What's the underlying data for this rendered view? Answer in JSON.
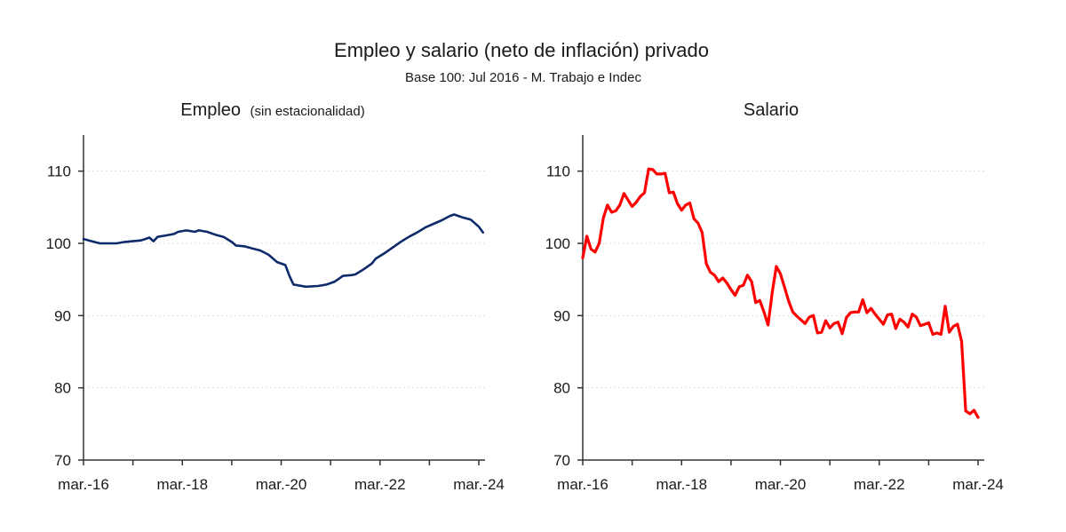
{
  "title": "Empleo y salario (neto de inflación) privado",
  "subtitle": "Base 100: Jul 2016 - M. Trabajo e Indec",
  "colors": {
    "empleo": "#0d2a6b",
    "salario": "#ff0000",
    "axis": "#333333",
    "grid": "#dddddd"
  },
  "chart_data": [
    {
      "type": "line",
      "title": "Empleo",
      "title_note": "(sin estacionalidad)",
      "ylim": [
        70,
        115
      ],
      "yticks": [
        70,
        80,
        90,
        100,
        110
      ],
      "xticks": [
        "mar.-16",
        "mar.-18",
        "mar.-20",
        "mar.-22",
        "mar.-24"
      ],
      "grid": true,
      "series": [
        {
          "points": [
            [
              "2016-03",
              100.6
            ],
            [
              "2016-05",
              100.3
            ],
            [
              "2016-07",
              100.0
            ],
            [
              "2016-09",
              100.0
            ],
            [
              "2016-11",
              100.0
            ],
            [
              "2017-01",
              100.2
            ],
            [
              "2017-03",
              100.3
            ],
            [
              "2017-05",
              100.4
            ],
            [
              "2017-07",
              100.8
            ],
            [
              "2017-08",
              100.3
            ],
            [
              "2017-09",
              100.9
            ],
            [
              "2017-11",
              101.1
            ],
            [
              "2018-01",
              101.3
            ],
            [
              "2018-02",
              101.6
            ],
            [
              "2018-04",
              101.8
            ],
            [
              "2018-06",
              101.6
            ],
            [
              "2018-07",
              101.8
            ],
            [
              "2018-09",
              101.6
            ],
            [
              "2018-11",
              101.2
            ],
            [
              "2019-01",
              100.9
            ],
            [
              "2019-03",
              100.2
            ],
            [
              "2019-04",
              99.7
            ],
            [
              "2019-06",
              99.6
            ],
            [
              "2019-08",
              99.3
            ],
            [
              "2019-10",
              99.0
            ],
            [
              "2019-12",
              98.4
            ],
            [
              "2020-01",
              97.9
            ],
            [
              "2020-02",
              97.4
            ],
            [
              "2020-04",
              97.0
            ],
            [
              "2020-05",
              95.5
            ],
            [
              "2020-06",
              94.3
            ],
            [
              "2020-07",
              94.2
            ],
            [
              "2020-09",
              94.0
            ],
            [
              "2020-12",
              94.1
            ],
            [
              "2021-02",
              94.3
            ],
            [
              "2021-04",
              94.7
            ],
            [
              "2021-06",
              95.5
            ],
            [
              "2021-08",
              95.6
            ],
            [
              "2021-09",
              95.7
            ],
            [
              "2021-11",
              96.4
            ],
            [
              "2022-01",
              97.2
            ],
            [
              "2022-02",
              97.9
            ],
            [
              "2022-04",
              98.6
            ],
            [
              "2022-06",
              99.4
            ],
            [
              "2022-08",
              100.2
            ],
            [
              "2022-10",
              100.9
            ],
            [
              "2022-12",
              101.5
            ],
            [
              "2023-02",
              102.2
            ],
            [
              "2023-04",
              102.7
            ],
            [
              "2023-06",
              103.2
            ],
            [
              "2023-08",
              103.8
            ],
            [
              "2023-09",
              104.0
            ],
            [
              "2023-11",
              103.6
            ],
            [
              "2024-01",
              103.3
            ],
            [
              "2024-02",
              102.8
            ],
            [
              "2024-03",
              102.3
            ],
            [
              "2024-04",
              101.5
            ]
          ]
        }
      ]
    },
    {
      "type": "line",
      "title": "Salario",
      "ylim": [
        70,
        115
      ],
      "yticks": [
        70,
        80,
        90,
        100,
        110
      ],
      "xticks": [
        "mar.-16",
        "mar.-18",
        "mar.-20",
        "mar.-22",
        "mar.-24"
      ],
      "grid": true,
      "series": [
        {
          "points": [
            [
              "2016-03",
              98.0
            ],
            [
              "2016-04",
              101.0
            ],
            [
              "2016-05",
              99.2
            ],
            [
              "2016-06",
              98.8
            ],
            [
              "2016-07",
              100.0
            ],
            [
              "2016-08",
              103.5
            ],
            [
              "2016-09",
              105.3
            ],
            [
              "2016-10",
              104.3
            ],
            [
              "2016-11",
              104.5
            ],
            [
              "2016-12",
              105.3
            ],
            [
              "2017-01",
              106.9
            ],
            [
              "2017-02",
              106.0
            ],
            [
              "2017-03",
              105.1
            ],
            [
              "2017-04",
              105.7
            ],
            [
              "2017-05",
              106.5
            ],
            [
              "2017-06",
              107.0
            ],
            [
              "2017-07",
              110.3
            ],
            [
              "2017-08",
              110.2
            ],
            [
              "2017-09",
              109.6
            ],
            [
              "2017-10",
              109.6
            ],
            [
              "2017-11",
              109.7
            ],
            [
              "2017-12",
              107.0
            ],
            [
              "2018-01",
              107.1
            ],
            [
              "2018-02",
              105.5
            ],
            [
              "2018-03",
              104.6
            ],
            [
              "2018-04",
              105.3
            ],
            [
              "2018-05",
              105.6
            ],
            [
              "2018-06",
              103.4
            ],
            [
              "2018-07",
              102.8
            ],
            [
              "2018-08",
              101.5
            ],
            [
              "2018-09",
              97.2
            ],
            [
              "2018-10",
              96.0
            ],
            [
              "2018-11",
              95.6
            ],
            [
              "2018-12",
              94.7
            ],
            [
              "2019-01",
              95.2
            ],
            [
              "2019-02",
              94.5
            ],
            [
              "2019-03",
              93.6
            ],
            [
              "2019-04",
              92.8
            ],
            [
              "2019-05",
              94.0
            ],
            [
              "2019-06",
              94.2
            ],
            [
              "2019-07",
              95.6
            ],
            [
              "2019-08",
              94.7
            ],
            [
              "2019-09",
              91.8
            ],
            [
              "2019-10",
              92.1
            ],
            [
              "2019-11",
              90.5
            ],
            [
              "2019-12",
              88.7
            ],
            [
              "2020-01",
              93.2
            ],
            [
              "2020-02",
              96.8
            ],
            [
              "2020-03",
              95.8
            ],
            [
              "2020-04",
              93.9
            ],
            [
              "2020-05",
              92.0
            ],
            [
              "2020-06",
              90.5
            ],
            [
              "2020-07",
              89.9
            ],
            [
              "2020-08",
              89.4
            ],
            [
              "2020-09",
              88.9
            ],
            [
              "2020-10",
              89.8
            ],
            [
              "2020-11",
              90.0
            ],
            [
              "2020-12",
              87.6
            ],
            [
              "2021-01",
              87.7
            ],
            [
              "2021-02",
              89.3
            ],
            [
              "2021-03",
              88.3
            ],
            [
              "2021-04",
              88.9
            ],
            [
              "2021-05",
              89.1
            ],
            [
              "2021-06",
              87.5
            ],
            [
              "2021-07",
              89.7
            ],
            [
              "2021-08",
              90.4
            ],
            [
              "2021-09",
              90.5
            ],
            [
              "2021-10",
              90.5
            ],
            [
              "2021-11",
              92.2
            ],
            [
              "2021-12",
              90.4
            ],
            [
              "2022-01",
              91.0
            ],
            [
              "2022-02",
              90.2
            ],
            [
              "2022-03",
              89.5
            ],
            [
              "2022-04",
              88.8
            ],
            [
              "2022-05",
              90.1
            ],
            [
              "2022-06",
              90.2
            ],
            [
              "2022-07",
              88.2
            ],
            [
              "2022-08",
              89.5
            ],
            [
              "2022-09",
              89.1
            ],
            [
              "2022-10",
              88.4
            ],
            [
              "2022-11",
              90.2
            ],
            [
              "2022-12",
              89.8
            ],
            [
              "2023-01",
              88.6
            ],
            [
              "2023-02",
              88.8
            ],
            [
              "2023-03",
              89.0
            ],
            [
              "2023-04",
              87.4
            ],
            [
              "2023-05",
              87.6
            ],
            [
              "2023-06",
              87.4
            ],
            [
              "2023-07",
              91.3
            ],
            [
              "2023-08",
              87.7
            ],
            [
              "2023-09",
              88.5
            ],
            [
              "2023-10",
              88.8
            ],
            [
              "2023-11",
              86.4
            ],
            [
              "2023-12",
              76.8
            ],
            [
              "2024-01",
              76.4
            ],
            [
              "2024-02",
              76.9
            ],
            [
              "2024-03",
              75.9
            ]
          ]
        }
      ]
    }
  ]
}
